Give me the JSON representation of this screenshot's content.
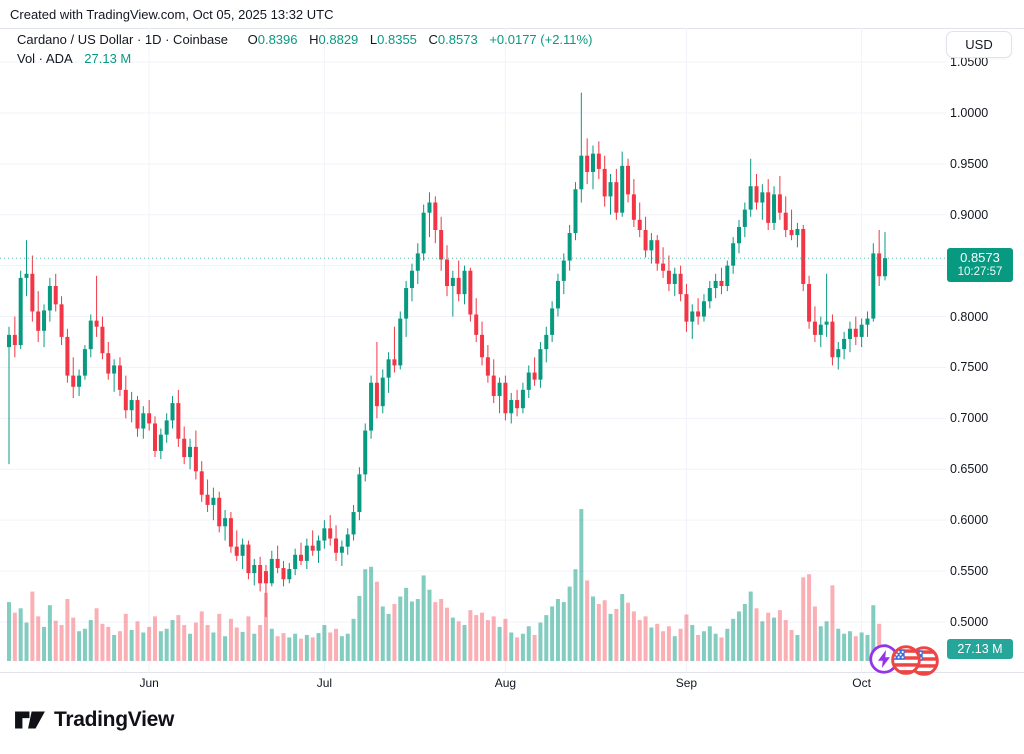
{
  "header": {
    "attribution": "Created with TradingView.com, Oct 05, 2025 13:32 UTC",
    "symbol_title": "Cardano / US Dollar · 1D · Coinbase",
    "ohlc": {
      "o_label": "O",
      "o": "0.8396",
      "h_label": "H",
      "h": "0.8829",
      "l_label": "L",
      "l": "0.8355",
      "c_label": "C",
      "c": "0.8573",
      "change": "+0.0177 (+2.11%)"
    },
    "volume_label": "Vol · ADA",
    "volume_value": "27.13 M"
  },
  "axis": {
    "currency_button": "USD",
    "price_ticks": [
      1.05,
      1.0,
      0.95,
      0.9,
      0.8,
      0.75,
      0.7,
      0.65,
      0.6,
      0.55,
      0.5
    ],
    "gridline_prices": [
      1.05,
      1.0,
      0.95,
      0.9,
      0.85,
      0.8,
      0.75,
      0.7,
      0.65,
      0.6,
      0.55,
      0.5
    ],
    "month_ticks": [
      {
        "label": "Jun",
        "index": 24
      },
      {
        "label": "Jul",
        "index": 54
      },
      {
        "label": "Aug",
        "index": 85
      },
      {
        "label": "Sep",
        "index": 116
      },
      {
        "label": "Oct",
        "index": 146
      }
    ]
  },
  "price_label": {
    "price": "0.8573",
    "countdown": "10:27:57"
  },
  "volume_badge": "27.13 M",
  "footer": {
    "brand": "TradingView"
  },
  "colors": {
    "up": "#089981",
    "down": "#f23645",
    "vol_up": "rgba(8,153,129,0.5)",
    "vol_down": "rgba(242,54,69,0.4)",
    "grid": "#f0f3fa",
    "border": "#e0e3eb",
    "text": "#131722",
    "price_line": "#089981",
    "badge": "#089981",
    "vol_badge_bg": "#26a69a",
    "event_purple": "#9333ea",
    "event_red": "#ee4444",
    "event_blue": "#3b6fe0"
  },
  "chart_data": {
    "type": "candlestick+volume",
    "title": "Cardano / US Dollar",
    "exchange": "Coinbase",
    "interval": "1D",
    "quote_currency": "USD",
    "ylabel": "Price (USD)",
    "ylim": [
      0.5,
      1.05
    ],
    "grid": true,
    "legend_position": "top-left",
    "axis_position": "right",
    "last_bar": {
      "open": 0.8396,
      "high": 0.8829,
      "low": 0.8355,
      "close": 0.8573,
      "change": 0.0177,
      "change_pct": 2.11,
      "volume_millions": 27.13,
      "countdown": "10:27:57",
      "date": "Oct 05, 2025"
    },
    "x_months": [
      "Jun",
      "Jul",
      "Aug",
      "Sep",
      "Oct"
    ],
    "volume_unit": "millions ADA",
    "candles_format": [
      "open",
      "high",
      "low",
      "close",
      "volume_millions"
    ],
    "candles": [
      [
        0.77,
        0.79,
        0.655,
        0.782,
        95
      ],
      [
        0.782,
        0.8,
        0.76,
        0.772,
        78
      ],
      [
        0.772,
        0.845,
        0.768,
        0.838,
        85
      ],
      [
        0.838,
        0.875,
        0.82,
        0.842,
        62
      ],
      [
        0.842,
        0.86,
        0.795,
        0.805,
        112
      ],
      [
        0.805,
        0.825,
        0.775,
        0.786,
        72
      ],
      [
        0.786,
        0.812,
        0.77,
        0.806,
        55
      ],
      [
        0.806,
        0.838,
        0.795,
        0.83,
        90
      ],
      [
        0.83,
        0.842,
        0.805,
        0.812,
        65
      ],
      [
        0.812,
        0.82,
        0.772,
        0.78,
        58
      ],
      [
        0.78,
        0.788,
        0.735,
        0.742,
        100
      ],
      [
        0.742,
        0.76,
        0.72,
        0.731,
        70
      ],
      [
        0.731,
        0.748,
        0.722,
        0.742,
        48
      ],
      [
        0.742,
        0.772,
        0.738,
        0.768,
        52
      ],
      [
        0.768,
        0.802,
        0.76,
        0.796,
        66
      ],
      [
        0.796,
        0.84,
        0.78,
        0.79,
        85
      ],
      [
        0.79,
        0.8,
        0.758,
        0.764,
        60
      ],
      [
        0.764,
        0.775,
        0.738,
        0.744,
        55
      ],
      [
        0.744,
        0.758,
        0.726,
        0.752,
        42
      ],
      [
        0.752,
        0.76,
        0.722,
        0.728,
        48
      ],
      [
        0.728,
        0.742,
        0.7,
        0.708,
        76
      ],
      [
        0.708,
        0.726,
        0.696,
        0.718,
        50
      ],
      [
        0.718,
        0.722,
        0.682,
        0.69,
        64
      ],
      [
        0.69,
        0.712,
        0.68,
        0.705,
        46
      ],
      [
        0.705,
        0.718,
        0.688,
        0.695,
        55
      ],
      [
        0.695,
        0.702,
        0.662,
        0.668,
        72
      ],
      [
        0.668,
        0.69,
        0.66,
        0.684,
        48
      ],
      [
        0.684,
        0.705,
        0.676,
        0.698,
        52
      ],
      [
        0.698,
        0.722,
        0.69,
        0.715,
        66
      ],
      [
        0.715,
        0.728,
        0.672,
        0.68,
        74
      ],
      [
        0.68,
        0.692,
        0.655,
        0.662,
        58
      ],
      [
        0.662,
        0.68,
        0.65,
        0.672,
        44
      ],
      [
        0.672,
        0.688,
        0.64,
        0.648,
        62
      ],
      [
        0.648,
        0.658,
        0.618,
        0.625,
        80
      ],
      [
        0.625,
        0.64,
        0.608,
        0.615,
        58
      ],
      [
        0.615,
        0.632,
        0.6,
        0.622,
        46
      ],
      [
        0.622,
        0.628,
        0.588,
        0.594,
        76
      ],
      [
        0.594,
        0.61,
        0.58,
        0.602,
        40
      ],
      [
        0.602,
        0.608,
        0.568,
        0.574,
        68
      ],
      [
        0.574,
        0.59,
        0.56,
        0.565,
        54
      ],
      [
        0.565,
        0.582,
        0.552,
        0.576,
        47
      ],
      [
        0.576,
        0.58,
        0.542,
        0.548,
        72
      ],
      [
        0.548,
        0.562,
        0.536,
        0.556,
        44
      ],
      [
        0.556,
        0.564,
        0.53,
        0.538,
        58
      ],
      [
        0.55,
        0.556,
        0.505,
        0.538,
        110
      ],
      [
        0.538,
        0.57,
        0.535,
        0.562,
        52
      ],
      [
        0.562,
        0.575,
        0.548,
        0.553,
        40
      ],
      [
        0.553,
        0.56,
        0.535,
        0.542,
        45
      ],
      [
        0.542,
        0.558,
        0.538,
        0.552,
        38
      ],
      [
        0.552,
        0.572,
        0.546,
        0.566,
        44
      ],
      [
        0.566,
        0.578,
        0.556,
        0.56,
        36
      ],
      [
        0.56,
        0.582,
        0.552,
        0.575,
        42
      ],
      [
        0.575,
        0.59,
        0.565,
        0.57,
        38
      ],
      [
        0.57,
        0.585,
        0.558,
        0.58,
        45
      ],
      [
        0.58,
        0.6,
        0.572,
        0.592,
        58
      ],
      [
        0.592,
        0.605,
        0.575,
        0.582,
        46
      ],
      [
        0.582,
        0.595,
        0.56,
        0.568,
        52
      ],
      [
        0.568,
        0.58,
        0.555,
        0.574,
        40
      ],
      [
        0.574,
        0.592,
        0.566,
        0.586,
        44
      ],
      [
        0.586,
        0.615,
        0.58,
        0.608,
        68
      ],
      [
        0.608,
        0.652,
        0.6,
        0.645,
        105
      ],
      [
        0.645,
        0.695,
        0.638,
        0.688,
        148
      ],
      [
        0.688,
        0.742,
        0.68,
        0.735,
        152
      ],
      [
        0.735,
        0.775,
        0.7,
        0.712,
        128
      ],
      [
        0.712,
        0.748,
        0.705,
        0.74,
        88
      ],
      [
        0.74,
        0.765,
        0.725,
        0.758,
        76
      ],
      [
        0.758,
        0.79,
        0.745,
        0.752,
        92
      ],
      [
        0.752,
        0.805,
        0.748,
        0.798,
        104
      ],
      [
        0.798,
        0.835,
        0.78,
        0.828,
        118
      ],
      [
        0.828,
        0.852,
        0.815,
        0.845,
        96
      ],
      [
        0.845,
        0.872,
        0.832,
        0.862,
        100
      ],
      [
        0.862,
        0.91,
        0.855,
        0.902,
        138
      ],
      [
        0.902,
        0.922,
        0.878,
        0.912,
        115
      ],
      [
        0.912,
        0.918,
        0.872,
        0.885,
        95
      ],
      [
        0.885,
        0.898,
        0.845,
        0.856,
        100
      ],
      [
        0.856,
        0.87,
        0.82,
        0.83,
        86
      ],
      [
        0.83,
        0.845,
        0.8,
        0.838,
        70
      ],
      [
        0.838,
        0.855,
        0.815,
        0.822,
        64
      ],
      [
        0.822,
        0.85,
        0.812,
        0.845,
        58
      ],
      [
        0.845,
        0.848,
        0.795,
        0.802,
        82
      ],
      [
        0.802,
        0.818,
        0.775,
        0.782,
        74
      ],
      [
        0.782,
        0.795,
        0.752,
        0.76,
        78
      ],
      [
        0.76,
        0.772,
        0.735,
        0.742,
        66
      ],
      [
        0.742,
        0.758,
        0.715,
        0.722,
        72
      ],
      [
        0.722,
        0.74,
        0.705,
        0.735,
        55
      ],
      [
        0.735,
        0.742,
        0.698,
        0.705,
        68
      ],
      [
        0.705,
        0.725,
        0.695,
        0.718,
        46
      ],
      [
        0.718,
        0.728,
        0.702,
        0.71,
        38
      ],
      [
        0.71,
        0.735,
        0.705,
        0.728,
        44
      ],
      [
        0.728,
        0.752,
        0.72,
        0.745,
        56
      ],
      [
        0.745,
        0.76,
        0.732,
        0.738,
        42
      ],
      [
        0.738,
        0.775,
        0.73,
        0.768,
        62
      ],
      [
        0.768,
        0.79,
        0.755,
        0.782,
        74
      ],
      [
        0.782,
        0.815,
        0.775,
        0.808,
        88
      ],
      [
        0.808,
        0.842,
        0.8,
        0.835,
        100
      ],
      [
        0.835,
        0.862,
        0.822,
        0.855,
        95
      ],
      [
        0.855,
        0.89,
        0.845,
        0.882,
        120
      ],
      [
        0.882,
        0.932,
        0.875,
        0.925,
        148
      ],
      [
        0.925,
        1.02,
        0.912,
        0.958,
        245
      ],
      [
        0.958,
        0.975,
        0.93,
        0.942,
        130
      ],
      [
        0.942,
        0.968,
        0.925,
        0.96,
        104
      ],
      [
        0.96,
        0.972,
        0.935,
        0.945,
        92
      ],
      [
        0.945,
        0.958,
        0.908,
        0.918,
        98
      ],
      [
        0.918,
        0.94,
        0.9,
        0.932,
        76
      ],
      [
        0.932,
        0.945,
        0.895,
        0.902,
        84
      ],
      [
        0.902,
        0.962,
        0.898,
        0.948,
        108
      ],
      [
        0.948,
        0.955,
        0.912,
        0.92,
        94
      ],
      [
        0.92,
        0.935,
        0.888,
        0.895,
        80
      ],
      [
        0.895,
        0.912,
        0.878,
        0.885,
        66
      ],
      [
        0.885,
        0.898,
        0.858,
        0.865,
        72
      ],
      [
        0.865,
        0.882,
        0.852,
        0.875,
        54
      ],
      [
        0.875,
        0.88,
        0.845,
        0.852,
        60
      ],
      [
        0.852,
        0.868,
        0.838,
        0.845,
        48
      ],
      [
        0.845,
        0.86,
        0.825,
        0.832,
        56
      ],
      [
        0.832,
        0.848,
        0.82,
        0.842,
        40
      ],
      [
        0.842,
        0.85,
        0.815,
        0.822,
        52
      ],
      [
        0.822,
        0.832,
        0.785,
        0.795,
        75
      ],
      [
        0.795,
        0.812,
        0.778,
        0.805,
        58
      ],
      [
        0.805,
        0.818,
        0.792,
        0.8,
        42
      ],
      [
        0.8,
        0.822,
        0.795,
        0.815,
        48
      ],
      [
        0.815,
        0.835,
        0.808,
        0.828,
        56
      ],
      [
        0.828,
        0.842,
        0.818,
        0.835,
        44
      ],
      [
        0.835,
        0.848,
        0.822,
        0.83,
        38
      ],
      [
        0.83,
        0.855,
        0.825,
        0.85,
        52
      ],
      [
        0.85,
        0.878,
        0.842,
        0.872,
        68
      ],
      [
        0.872,
        0.895,
        0.862,
        0.888,
        80
      ],
      [
        0.888,
        0.912,
        0.878,
        0.905,
        92
      ],
      [
        0.905,
        0.955,
        0.898,
        0.928,
        112
      ],
      [
        0.928,
        0.94,
        0.905,
        0.912,
        85
      ],
      [
        0.912,
        0.93,
        0.895,
        0.922,
        64
      ],
      [
        0.922,
        0.935,
        0.885,
        0.892,
        78
      ],
      [
        0.892,
        0.928,
        0.885,
        0.92,
        70
      ],
      [
        0.92,
        0.938,
        0.895,
        0.902,
        82
      ],
      [
        0.902,
        0.918,
        0.878,
        0.885,
        66
      ],
      [
        0.885,
        0.905,
        0.875,
        0.88,
        50
      ],
      [
        0.88,
        0.892,
        0.868,
        0.886,
        42
      ],
      [
        0.886,
        0.89,
        0.825,
        0.832,
        135
      ],
      [
        0.832,
        0.84,
        0.788,
        0.795,
        140
      ],
      [
        0.795,
        0.81,
        0.775,
        0.782,
        88
      ],
      [
        0.782,
        0.8,
        0.77,
        0.792,
        56
      ],
      [
        0.792,
        0.842,
        0.78,
        0.795,
        64
      ],
      [
        0.795,
        0.802,
        0.752,
        0.76,
        122
      ],
      [
        0.76,
        0.775,
        0.748,
        0.768,
        52
      ],
      [
        0.768,
        0.785,
        0.758,
        0.778,
        44
      ],
      [
        0.778,
        0.795,
        0.765,
        0.788,
        48
      ],
      [
        0.788,
        0.8,
        0.772,
        0.78,
        40
      ],
      [
        0.78,
        0.798,
        0.77,
        0.792,
        46
      ],
      [
        0.792,
        0.805,
        0.78,
        0.798,
        42
      ],
      [
        0.798,
        0.872,
        0.795,
        0.862,
        90
      ],
      [
        0.862,
        0.885,
        0.83,
        0.8396,
        60
      ],
      [
        0.8396,
        0.8829,
        0.8355,
        0.8573,
        27.13
      ]
    ]
  }
}
